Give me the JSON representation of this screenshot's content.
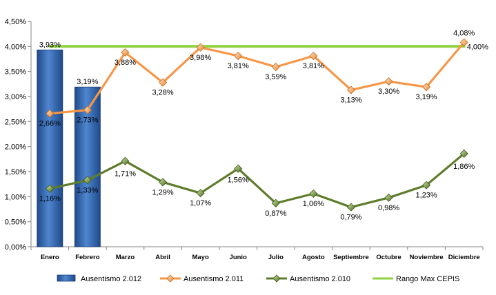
{
  "chart_data": {
    "type": "bar",
    "categories": [
      "Enero",
      "Febrero",
      "Marzo",
      "Abril",
      "Mayo",
      "Junio",
      "Julio",
      "Agosto",
      "Septiembre",
      "Octubre",
      "Noviembre",
      "Diciembre"
    ],
    "ylim": [
      0,
      4.5
    ],
    "yticks": [
      "0,00%",
      "0,50%",
      "1,00%",
      "1,50%",
      "2,00%",
      "2,50%",
      "3,00%",
      "3,50%",
      "4,00%",
      "4,50%"
    ],
    "grid": false,
    "legend_position": "bottom",
    "series": [
      {
        "name": "Ausentismo 2.012",
        "kind": "bar",
        "color": "#2f5fa7",
        "label_color": "#4a78b8",
        "values": [
          3.93,
          3.19,
          null,
          null,
          null,
          null,
          null,
          null,
          null,
          null,
          null,
          null
        ],
        "labels": [
          "3,93%",
          "3,19%",
          "",
          "",
          "",
          "",
          "",
          "",
          "",
          "",
          "",
          ""
        ]
      },
      {
        "name": "Ausentismo 2.011",
        "kind": "line",
        "color": "#f79646",
        "values": [
          2.66,
          2.73,
          3.88,
          3.28,
          3.98,
          3.81,
          3.59,
          3.81,
          3.13,
          3.3,
          3.19,
          4.08
        ],
        "labels": [
          "2,66%",
          "2,73%",
          "3,88%",
          "3,28%",
          "3,98%",
          "3,81%",
          "3,59%",
          "3,81%",
          "3,13%",
          "3,30%",
          "3,19%",
          "4,08%"
        ]
      },
      {
        "name": "Ausentismo 2.010",
        "kind": "line",
        "color": "#5e7d2b",
        "values": [
          1.16,
          1.33,
          1.71,
          1.29,
          1.07,
          1.56,
          0.87,
          1.06,
          0.79,
          0.98,
          1.23,
          1.86
        ],
        "labels": [
          "1,16%",
          "1,33%",
          "1,71%",
          "1,29%",
          "1,07%",
          "1,56%",
          "0,87%",
          "1,06%",
          "0,79%",
          "0,98%",
          "1,23%",
          "1,86%"
        ]
      },
      {
        "name": "Rango Max CEPIS",
        "kind": "line",
        "color": "#8fd13f",
        "label_color": "#77933c",
        "values": [
          4.0,
          4.0,
          4.0,
          4.0,
          4.0,
          4.0,
          4.0,
          4.0,
          4.0,
          4.0,
          4.0,
          4.0
        ],
        "labels": [
          "",
          "",
          "",
          "",
          "",
          "",
          "",
          "",
          "",
          "",
          "",
          "4,00%"
        ]
      }
    ]
  }
}
